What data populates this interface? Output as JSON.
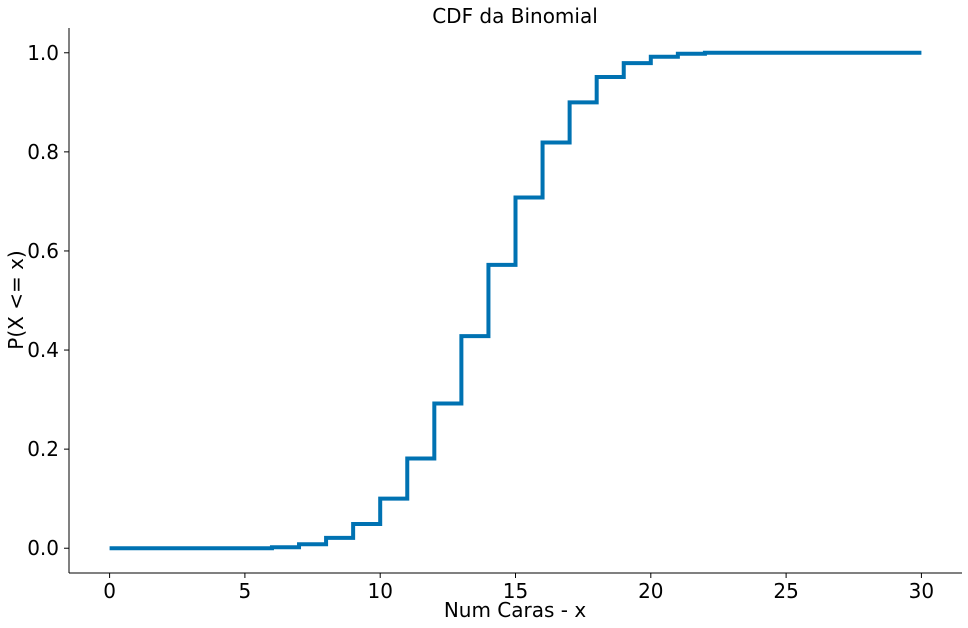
{
  "chart_data": {
    "type": "line",
    "step": "post",
    "title": "CDF da Binomial",
    "xlabel": "Num Caras - x",
    "ylabel": "P(X <= x)",
    "xlim": [
      -1.5,
      31.5
    ],
    "ylim": [
      -0.05,
      1.05
    ],
    "xticks": [
      0,
      5,
      10,
      15,
      20,
      25,
      30
    ],
    "yticks": [
      0.0,
      0.2,
      0.4,
      0.6,
      0.8,
      1.0
    ],
    "xtick_labels": [
      "0",
      "5",
      "10",
      "15",
      "20",
      "25",
      "30"
    ],
    "ytick_labels": [
      "0.0",
      "0.2",
      "0.4",
      "0.6",
      "0.8",
      "1.0"
    ],
    "grid": false,
    "line_color": "#0072b2",
    "series": [
      {
        "x": [
          0,
          1,
          2,
          3,
          4,
          5,
          6,
          7,
          8,
          9,
          10,
          11,
          12,
          13,
          14,
          15,
          16,
          17,
          18,
          19,
          20,
          21,
          22,
          23,
          24,
          25,
          26,
          27,
          28,
          29,
          30
        ],
        "values": [
          0.0,
          0.0,
          0.0,
          0.0,
          0.0,
          0.0,
          0.002,
          0.008,
          0.021,
          0.049,
          0.1,
          0.181,
          0.292,
          0.428,
          0.572,
          0.708,
          0.819,
          0.9,
          0.951,
          0.979,
          0.992,
          0.998,
          1.0,
          1.0,
          1.0,
          1.0,
          1.0,
          1.0,
          1.0,
          1.0,
          1.0
        ]
      }
    ]
  }
}
